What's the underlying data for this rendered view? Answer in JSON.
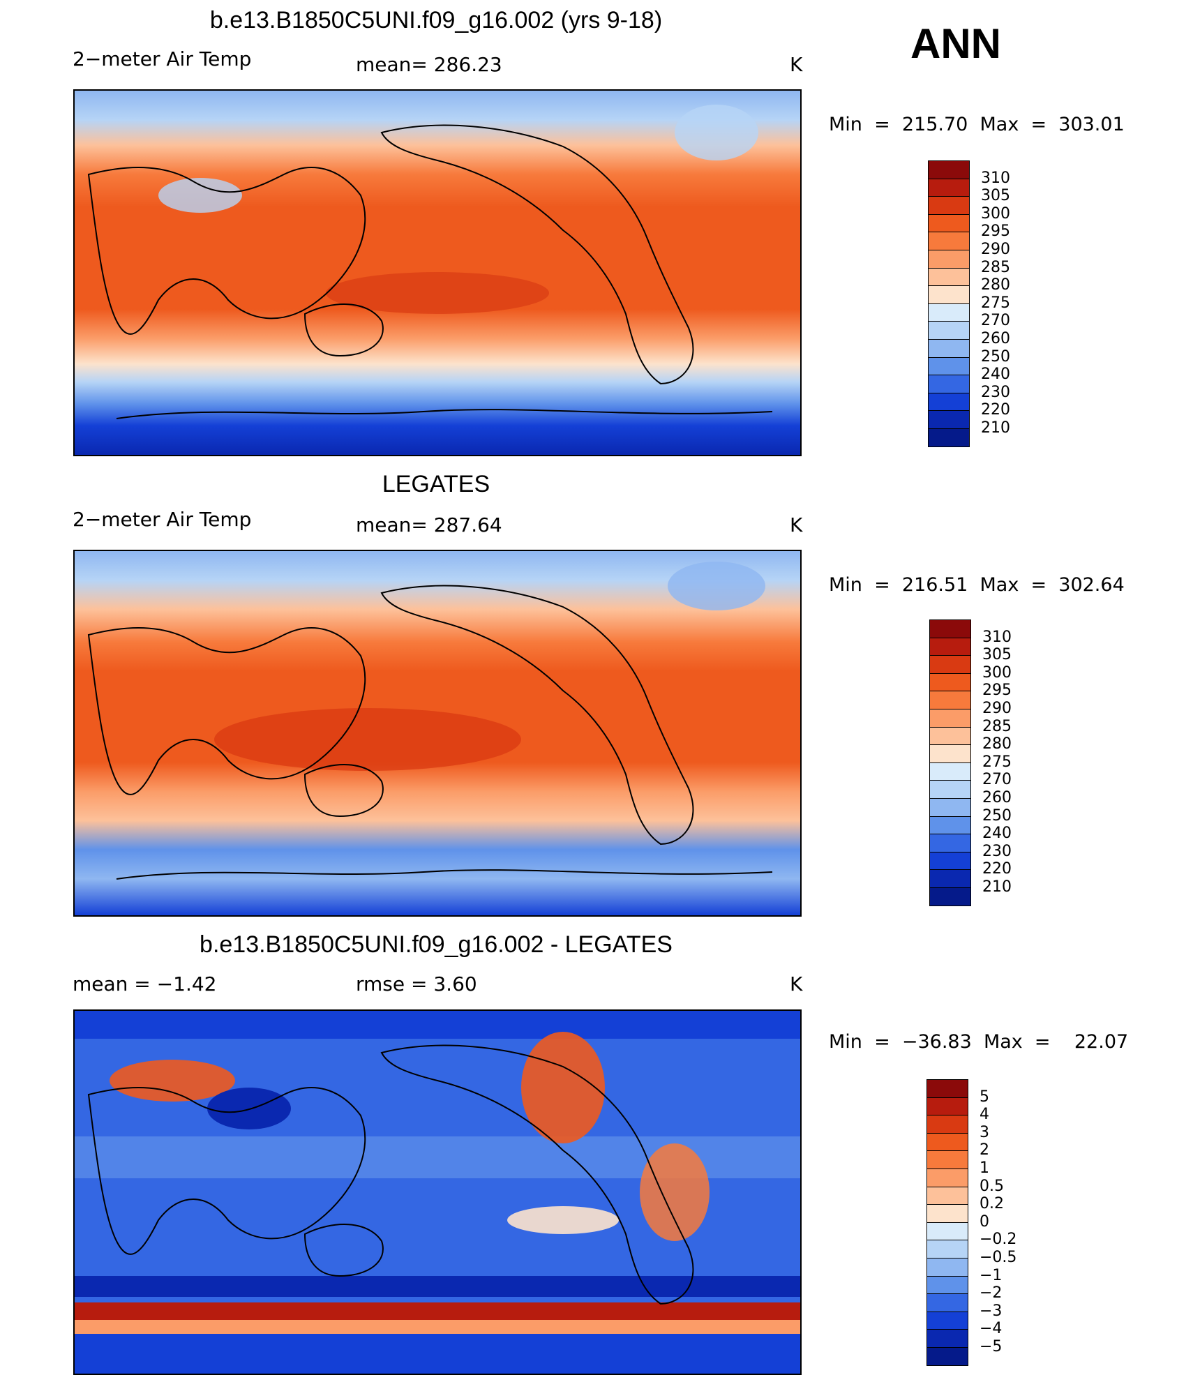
{
  "header": {
    "ann": "ANN"
  },
  "panels": [
    {
      "title": "b.e13.B1850C5UNI.f09_g16.002 (yrs 9-18)",
      "left_label": "2−meter Air Temp",
      "mid_label": "mean= 286.23",
      "unit": "K",
      "minmax": "Min  =  215.70  Max  =  303.01",
      "levels": [
        "310",
        "305",
        "300",
        "295",
        "290",
        "285",
        "280",
        "275",
        "270",
        "260",
        "250",
        "240",
        "230",
        "220",
        "210"
      ],
      "colors": [
        "#8b0a0a",
        "#b71c0e",
        "#d93a12",
        "#ee5a1e",
        "#f77a3c",
        "#fb9c68",
        "#fdc19a",
        "#fde3cc",
        "#d9ebfa",
        "#b6d4f6",
        "#8fb7f1",
        "#5f92ea",
        "#3467e3",
        "#1440d6",
        "#0a28b0",
        "#051a8a"
      ]
    },
    {
      "title": "LEGATES",
      "left_label": "2−meter Air Temp",
      "mid_label": "mean= 287.64",
      "unit": "K",
      "minmax": "Min  =  216.51  Max  =  302.64",
      "levels": [
        "310",
        "305",
        "300",
        "295",
        "290",
        "285",
        "280",
        "275",
        "270",
        "260",
        "250",
        "240",
        "230",
        "220",
        "210"
      ],
      "colors": [
        "#8b0a0a",
        "#b71c0e",
        "#d93a12",
        "#ee5a1e",
        "#f77a3c",
        "#fb9c68",
        "#fdc19a",
        "#fde3cc",
        "#d9ebfa",
        "#b6d4f6",
        "#8fb7f1",
        "#5f92ea",
        "#3467e3",
        "#1440d6",
        "#0a28b0",
        "#051a8a"
      ]
    },
    {
      "title": "b.e13.B1850C5UNI.f09_g16.002 - LEGATES",
      "left_label": "mean =     −1.42",
      "mid_label": "rmse =     3.60",
      "unit": "K",
      "minmax": "Min  =  −36.83  Max  =    22.07",
      "levels": [
        "5",
        "4",
        "3",
        "2",
        "1",
        "0.5",
        "0.2",
        "0",
        "−0.2",
        "−0.5",
        "−1",
        "−2",
        "−3",
        "−4",
        "−5"
      ],
      "colors": [
        "#8b0a0a",
        "#b71c0e",
        "#d93a12",
        "#ee5a1e",
        "#f77a3c",
        "#fb9c68",
        "#fdc19a",
        "#fde3cc",
        "#d9ebfa",
        "#b6d4f6",
        "#8fb7f1",
        "#5f92ea",
        "#3467e3",
        "#1440d6",
        "#0a28b0",
        "#051a8a"
      ]
    }
  ]
}
